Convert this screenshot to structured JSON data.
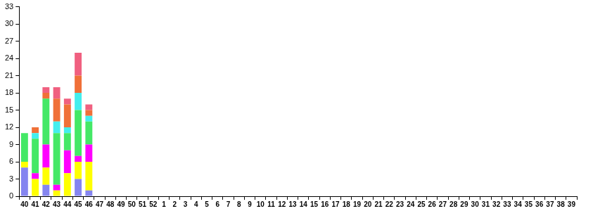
{
  "chart_data": {
    "type": "bar",
    "stacked": true,
    "grid": false,
    "categories": [
      "40",
      "41",
      "42",
      "43",
      "44",
      "45",
      "46",
      "47",
      "48",
      "49",
      "50",
      "51",
      "52",
      "1",
      "2",
      "3",
      "4",
      "5",
      "6",
      "7",
      "8",
      "9",
      "10",
      "11",
      "12",
      "13",
      "14",
      "15",
      "16",
      "17",
      "18",
      "19",
      "20",
      "21",
      "22",
      "23",
      "24",
      "25",
      "26",
      "27",
      "28",
      "29",
      "30",
      "31",
      "32",
      "33",
      "34",
      "35",
      "36",
      "37",
      "38",
      "39"
    ],
    "ylim": [
      0,
      33
    ],
    "yticks": [
      0,
      3,
      6,
      9,
      12,
      15,
      18,
      21,
      24,
      27,
      30,
      33
    ],
    "series": [
      {
        "color": "#8585f0",
        "values": [
          5,
          0,
          2,
          0,
          0,
          3,
          1,
          0,
          0,
          0,
          0,
          0,
          0,
          0,
          0,
          0,
          0,
          0,
          0,
          0,
          0,
          0,
          0,
          0,
          0,
          0,
          0,
          0,
          0,
          0,
          0,
          0,
          0,
          0,
          0,
          0,
          0,
          0,
          0,
          0,
          0,
          0,
          0,
          0,
          0,
          0,
          0,
          0,
          0,
          0,
          0,
          0
        ]
      },
      {
        "color": "#ffff00",
        "values": [
          1,
          3,
          3,
          1,
          4,
          3,
          5,
          0,
          0,
          0,
          0,
          0,
          0,
          0,
          0,
          0,
          0,
          0,
          0,
          0,
          0,
          0,
          0,
          0,
          0,
          0,
          0,
          0,
          0,
          0,
          0,
          0,
          0,
          0,
          0,
          0,
          0,
          0,
          0,
          0,
          0,
          0,
          0,
          0,
          0,
          0,
          0,
          0,
          0,
          0,
          0,
          0
        ]
      },
      {
        "color": "#ff00ff",
        "values": [
          0,
          1,
          4,
          1,
          4,
          1,
          3,
          0,
          0,
          0,
          0,
          0,
          0,
          0,
          0,
          0,
          0,
          0,
          0,
          0,
          0,
          0,
          0,
          0,
          0,
          0,
          0,
          0,
          0,
          0,
          0,
          0,
          0,
          0,
          0,
          0,
          0,
          0,
          0,
          0,
          0,
          0,
          0,
          0,
          0,
          0,
          0,
          0,
          0,
          0,
          0,
          0
        ]
      },
      {
        "color": "#44e866",
        "values": [
          5,
          6,
          8,
          9,
          3,
          8,
          4,
          0,
          0,
          0,
          0,
          0,
          0,
          0,
          0,
          0,
          0,
          0,
          0,
          0,
          0,
          0,
          0,
          0,
          0,
          0,
          0,
          0,
          0,
          0,
          0,
          0,
          0,
          0,
          0,
          0,
          0,
          0,
          0,
          0,
          0,
          0,
          0,
          0,
          0,
          0,
          0,
          0,
          0,
          0,
          0,
          0
        ]
      },
      {
        "color": "#44eeee",
        "values": [
          0,
          1,
          0,
          2,
          1,
          3,
          1,
          0,
          0,
          0,
          0,
          0,
          0,
          0,
          0,
          0,
          0,
          0,
          0,
          0,
          0,
          0,
          0,
          0,
          0,
          0,
          0,
          0,
          0,
          0,
          0,
          0,
          0,
          0,
          0,
          0,
          0,
          0,
          0,
          0,
          0,
          0,
          0,
          0,
          0,
          0,
          0,
          0,
          0,
          0,
          0,
          0
        ]
      },
      {
        "color": "#f07038",
        "values": [
          0,
          1,
          1,
          4,
          4,
          3,
          1,
          0,
          0,
          0,
          0,
          0,
          0,
          0,
          0,
          0,
          0,
          0,
          0,
          0,
          0,
          0,
          0,
          0,
          0,
          0,
          0,
          0,
          0,
          0,
          0,
          0,
          0,
          0,
          0,
          0,
          0,
          0,
          0,
          0,
          0,
          0,
          0,
          0,
          0,
          0,
          0,
          0,
          0,
          0,
          0,
          0
        ]
      },
      {
        "color": "#f06080",
        "values": [
          0,
          0,
          1,
          2,
          1,
          4,
          1,
          0,
          0,
          0,
          0,
          0,
          0,
          0,
          0,
          0,
          0,
          0,
          0,
          0,
          0,
          0,
          0,
          0,
          0,
          0,
          0,
          0,
          0,
          0,
          0,
          0,
          0,
          0,
          0,
          0,
          0,
          0,
          0,
          0,
          0,
          0,
          0,
          0,
          0,
          0,
          0,
          0,
          0,
          0,
          0,
          0
        ]
      }
    ]
  }
}
